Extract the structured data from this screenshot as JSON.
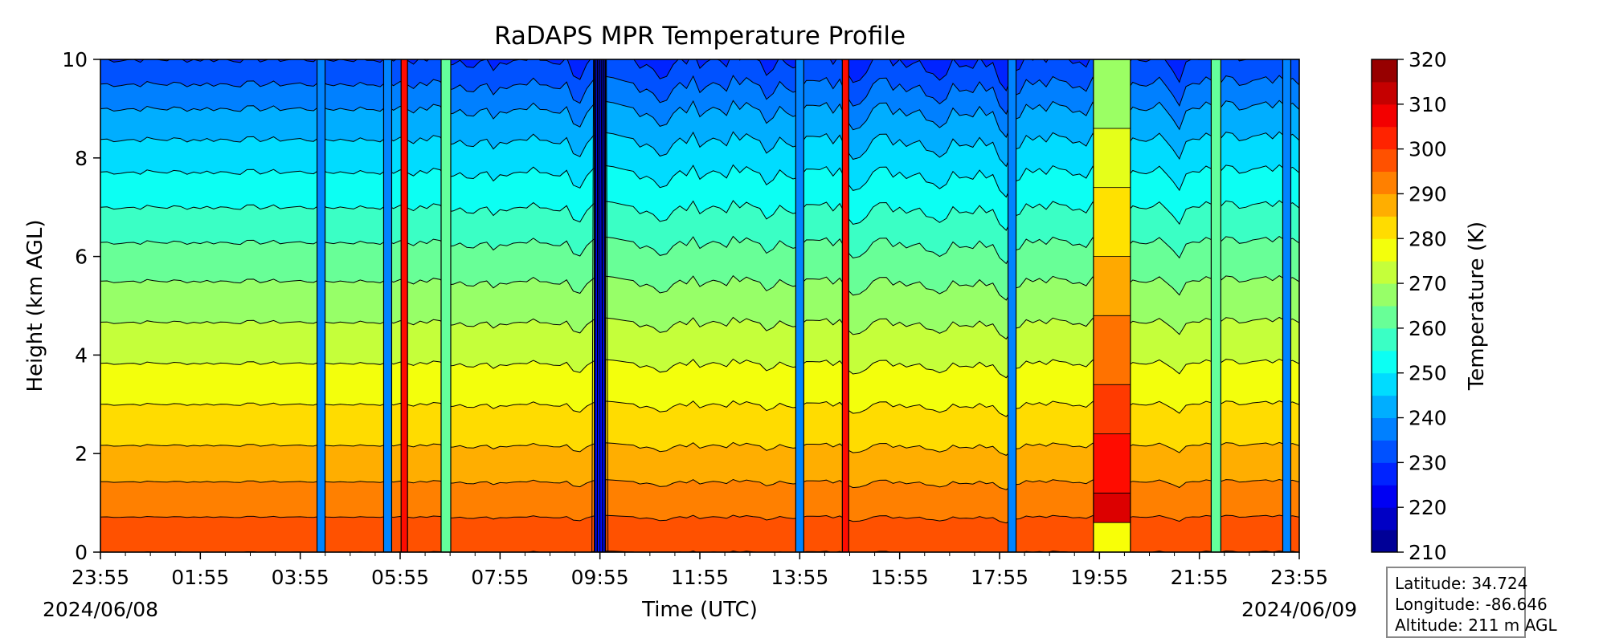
{
  "chart_data": {
    "type": "heatmap",
    "title": "RaDAPS MPR Temperature Profile",
    "xlabel": "Time (UTC)",
    "ylabel": "Height (km AGL)",
    "x_ticks": [
      "23:55",
      "01:55",
      "03:55",
      "05:55",
      "07:55",
      "09:55",
      "11:55",
      "13:55",
      "15:55",
      "17:55",
      "19:55",
      "21:55",
      "23:55"
    ],
    "start_date": "2024/06/08",
    "end_date": "2024/06/09",
    "ylim": [
      0,
      10
    ],
    "y_ticks": [
      "0",
      "2",
      "4",
      "6",
      "8",
      "10"
    ],
    "colorbar": {
      "label": "Temperature (K)",
      "range": [
        210,
        320
      ],
      "levels": [
        210,
        215,
        220,
        225,
        230,
        235,
        240,
        245,
        250,
        255,
        260,
        265,
        270,
        275,
        280,
        285,
        290,
        295,
        300,
        305,
        310,
        315,
        320
      ],
      "ticks": [
        "210",
        "220",
        "230",
        "240",
        "250",
        "260",
        "270",
        "280",
        "290",
        "300",
        "310",
        "320"
      ],
      "colormap": "jet"
    },
    "profile": {
      "height_km": [
        0,
        1,
        2,
        3,
        4,
        5,
        6,
        7,
        8,
        9,
        10
      ],
      "temperature_k": [
        300,
        293,
        286,
        280,
        274,
        268,
        262,
        255,
        248,
        240,
        230
      ]
    },
    "anomalies": [
      {
        "time": "04:20",
        "kind": "cold spike"
      },
      {
        "time": "05:40",
        "kind": "cold spike"
      },
      {
        "time": "06:00",
        "kind": "warm spike"
      },
      {
        "time": "06:50",
        "kind": "mixed spike"
      },
      {
        "time": "09:55",
        "kind": "dense contours"
      },
      {
        "time": "13:55",
        "kind": "cold spike"
      },
      {
        "time": "14:50",
        "kind": "warm spike"
      },
      {
        "time": "18:10",
        "kind": "cold spike"
      },
      {
        "time": "20:10",
        "kind": "warm block"
      },
      {
        "time": "22:15",
        "kind": "mixed spike"
      },
      {
        "time": "23:40",
        "kind": "cold spike"
      }
    ]
  },
  "info_box": {
    "latitude": "Latitude: 34.724",
    "longitude": "Longitude: -86.646",
    "altitude": "Altitude: 211 m AGL"
  }
}
